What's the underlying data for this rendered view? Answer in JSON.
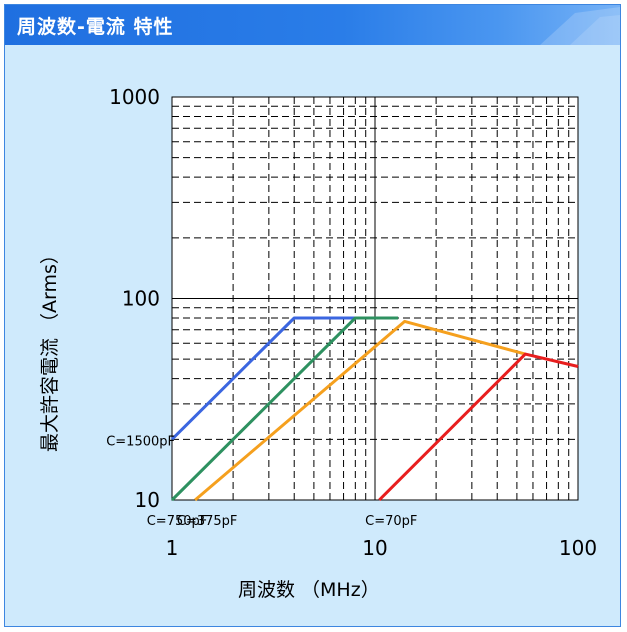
{
  "header": {
    "title": "周波数-電流 特性"
  },
  "colors": {
    "header": "#1f6fe0",
    "background": "#cfeafc",
    "grid": "#000000"
  },
  "chart_data": {
    "type": "line",
    "xscale": "log",
    "yscale": "log",
    "xlabel": "周波数 （MHz）",
    "ylabel": "最大許容電流 （Arms）",
    "xlim": [
      1,
      100
    ],
    "ylim": [
      10,
      1000
    ],
    "x_ticks": [
      {
        "value": 1,
        "label": "1"
      },
      {
        "value": 10,
        "label": "10"
      },
      {
        "value": 100,
        "label": "100"
      }
    ],
    "y_ticks": [
      {
        "value": 10,
        "label": "10"
      },
      {
        "value": 100,
        "label": "100"
      },
      {
        "value": 1000,
        "label": "1000"
      }
    ],
    "grid": true,
    "series": [
      {
        "color": "#3b66e0",
        "points": [
          [
            1,
            20
          ],
          [
            4,
            80
          ],
          [
            8,
            80
          ]
        ]
      },
      {
        "color": "#2e9160",
        "points": [
          [
            1,
            10
          ],
          [
            8,
            80
          ],
          [
            13,
            80
          ]
        ]
      },
      {
        "color": "#f5a01e",
        "points": [
          [
            1.3,
            10
          ],
          [
            14,
            77
          ],
          [
            55,
            53
          ]
        ]
      },
      {
        "color": "#e81e1e",
        "points": [
          [
            10.5,
            10
          ],
          [
            55,
            53
          ],
          [
            100,
            46
          ]
        ]
      }
    ],
    "annotations": [
      {
        "text": "C=1500pF",
        "x": 1,
        "y": 20
      },
      {
        "text": "C=750pF",
        "x": 1,
        "y": 10
      },
      {
        "text": "C=375pF",
        "x": 1.3,
        "y": 10
      },
      {
        "text": "C=70pF",
        "x": 10.5,
        "y": 10
      }
    ]
  }
}
